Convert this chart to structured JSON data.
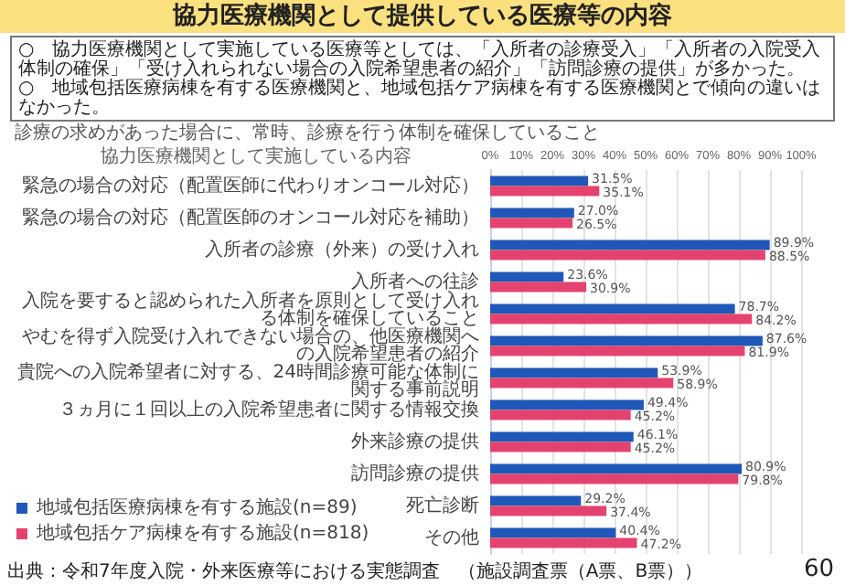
{
  "chart_data": {
    "type": "bar",
    "orientation": "horizontal",
    "title": "協力医療機関として提供している医療等の内容",
    "subtitle": "協力医療機関として実施している内容",
    "categories": [
      "緊急の場合の対応（配置医師に代わりオンコール対応）",
      "緊急の場合の対応（配置医師のオンコール対応を補助）",
      "入所者の診療（外来）の受け入れ",
      "入所者への往診",
      "入院を要すると認められた入所者を原則として受け入れる体制を確保していること",
      "やむを得ず入院受け入れできない場合の、他医療機関への入院希望患者の紹介",
      "貴院への入院希望者に対する、24時間診療可能な体制に関する事前説明",
      "３ヵ月に１回以上の入院希望患者に関する情報交換",
      "外来診療の提供",
      "訪問診療の提供",
      "死亡診断",
      "その他"
    ],
    "series": [
      {
        "name": "地域包括医療病棟を有する施設(n=89)",
        "color": "#1f58b8",
        "values": [
          31.5,
          27.0,
          89.9,
          23.6,
          78.7,
          87.6,
          53.9,
          49.4,
          46.1,
          80.9,
          29.2,
          40.4
        ],
        "value_labels": [
          "31.5%",
          "27.0%",
          "89.9%",
          "23.6%",
          "78.7%",
          "87.6%",
          "53.9%",
          "49.4%",
          "46.1%",
          "80.9%",
          "29.2%",
          "40.4%"
        ]
      },
      {
        "name": "地域包括ケア病棟を有する施設(n=818)",
        "color": "#e4436f",
        "values": [
          35.1,
          26.5,
          88.5,
          30.9,
          84.2,
          81.9,
          58.9,
          45.2,
          45.2,
          79.8,
          37.4,
          47.2
        ],
        "value_labels": [
          "35.1%",
          "26.5%",
          "88.5%",
          "30.9%",
          "84.2%",
          "81.9%",
          "58.9%",
          "45.2%",
          "45.2%",
          "79.8%",
          "37.4%",
          "47.2%"
        ]
      }
    ],
    "xlim": [
      0,
      100
    ],
    "xticks": [
      {
        "value": 0,
        "label": "0%"
      },
      {
        "value": 10,
        "label": "10%"
      },
      {
        "value": 20,
        "label": "20%"
      },
      {
        "value": 30,
        "label": "30%"
      },
      {
        "value": 40,
        "label": "40%"
      },
      {
        "value": 50,
        "label": "50%"
      },
      {
        "value": 60,
        "label": "60%"
      },
      {
        "value": 70,
        "label": "70%"
      },
      {
        "value": 80,
        "label": "80%"
      },
      {
        "value": 90,
        "label": "90%"
      },
      {
        "value": 100,
        "label": "100%"
      }
    ],
    "grid": "x",
    "legend": "bottom",
    "annotations": [
      "○　協力医療機関として実施している医療等としては、「入所者の診療受入」「入所者の入院受入体制の確保」「受け入れられない場合の入院希望患者の紹介」「訪問診療の提供」が多かった。",
      "○　地域包括医療病棟を有する医療機関と、地域包括ケア病棟を有する医療機関とで傾向の違いはなかった。",
      "診療の求めがあった場合に、常時、診療を行う体制を確保していること",
      "出典：令和7年度入院・外来医療等における実態調査　（施設調査票（A票、B票））",
      "60"
    ]
  }
}
